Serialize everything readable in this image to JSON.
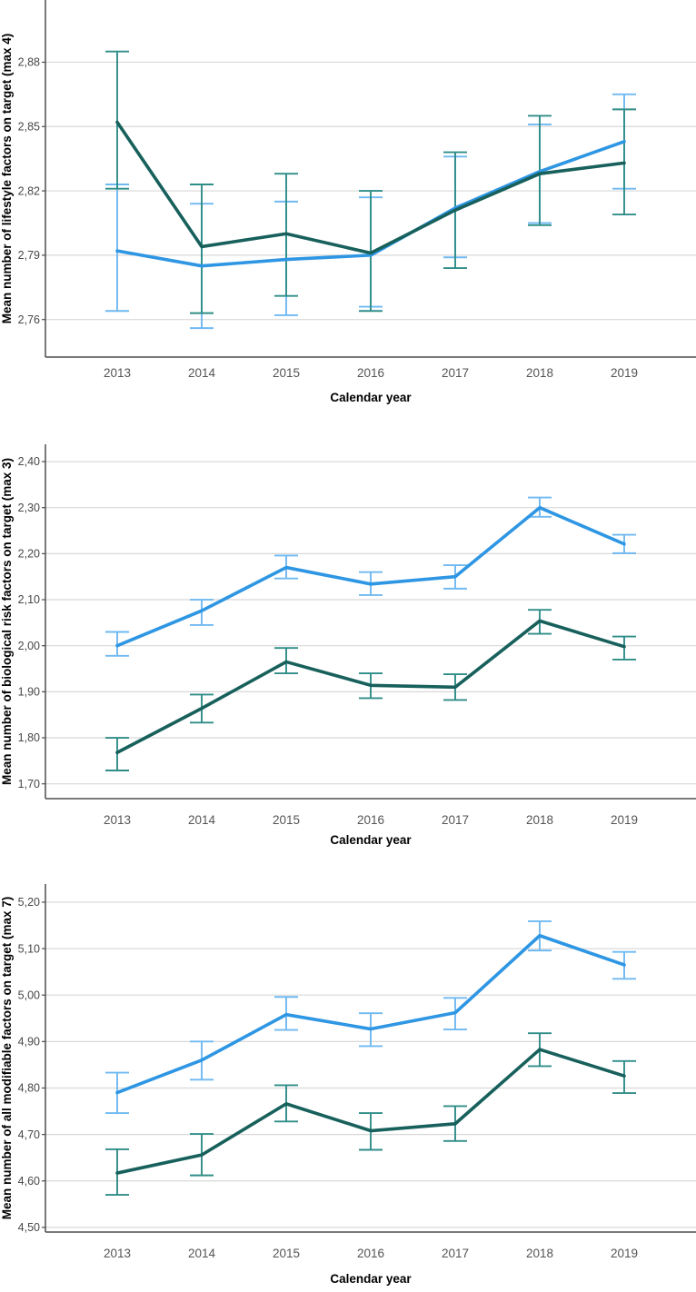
{
  "page": {
    "background": "#ffffff",
    "xlabel": "Calendar year"
  },
  "colors": {
    "series_light_blue": "#2E96E3",
    "series_light_blue_error": "#6FB9F1",
    "series_dark_teal": "#17605B",
    "series_dark_teal_error": "#2F8D88",
    "gridline": "#D8D8D8",
    "axis": "#4D4D4D",
    "tick_text": "#474747",
    "xtick_text": "#545454",
    "axis_title_text": "#000000"
  },
  "chart_data": [
    {
      "type": "line",
      "title": "",
      "xlabel": "Calendar year",
      "ylabel": "Mean number of lifestyle factors on target (max 4)",
      "categories": [
        "2013",
        "2014",
        "2015",
        "2016",
        "2017",
        "2018",
        "2019"
      ],
      "yticks": [
        2.76,
        2.79,
        2.82,
        2.85,
        2.88
      ],
      "ytick_labels": [
        "2,76",
        "2,79",
        "2,82",
        "2,85",
        "2,88"
      ],
      "ylim": [
        2.7425,
        2.909
      ],
      "grid": true,
      "legend_position": "none",
      "error_bars": true,
      "series": [
        {
          "name": "light-blue",
          "color": "#2E96E3",
          "error_color": "#6FB9F1",
          "values": [
            2.792,
            2.785,
            2.788,
            2.79,
            2.812,
            2.829,
            2.843
          ],
          "error_low": [
            2.764,
            2.756,
            2.762,
            2.766,
            2.789,
            2.805,
            2.821
          ],
          "error_high": [
            2.823,
            2.814,
            2.815,
            2.817,
            2.836,
            2.851,
            2.865
          ]
        },
        {
          "name": "dark-teal",
          "color": "#17605B",
          "error_color": "#2F8D88",
          "values": [
            2.852,
            2.794,
            2.8,
            2.791,
            2.811,
            2.828,
            2.833
          ],
          "error_low": [
            2.821,
            2.763,
            2.771,
            2.764,
            2.784,
            2.804,
            2.809
          ],
          "error_high": [
            2.885,
            2.823,
            2.828,
            2.82,
            2.838,
            2.855,
            2.858
          ]
        }
      ]
    },
    {
      "type": "line",
      "title": "",
      "xlabel": "Calendar year",
      "ylabel": "Mean number of biological risk factors on target (max 3)",
      "categories": [
        "2013",
        "2014",
        "2015",
        "2016",
        "2017",
        "2018",
        "2019"
      ],
      "yticks": [
        1.7,
        1.8,
        1.9,
        2.0,
        2.1,
        2.2,
        2.3,
        2.4
      ],
      "ytick_labels": [
        "1,70",
        "1,80",
        "1,90",
        "2,00",
        "2,10",
        "2,20",
        "2,30",
        "2,40"
      ],
      "ylim": [
        1.6678,
        2.4376
      ],
      "grid": true,
      "legend_position": "none",
      "error_bars": true,
      "series": [
        {
          "name": "light-blue",
          "color": "#2E96E3",
          "error_color": "#6FB9F1",
          "values": [
            2.0,
            2.076,
            2.17,
            2.134,
            2.15,
            2.3,
            2.221
          ],
          "error_low": [
            1.978,
            2.045,
            2.146,
            2.11,
            2.124,
            2.28,
            2.201
          ],
          "error_high": [
            2.03,
            2.1,
            2.196,
            2.16,
            2.175,
            2.322,
            2.241
          ]
        },
        {
          "name": "dark-teal",
          "color": "#17605B",
          "error_color": "#2F8D88",
          "values": [
            1.768,
            1.864,
            1.965,
            1.914,
            1.91,
            2.054,
            1.998
          ],
          "error_low": [
            1.729,
            1.833,
            1.94,
            1.886,
            1.882,
            2.026,
            1.97
          ],
          "error_high": [
            1.8,
            1.894,
            1.995,
            1.94,
            1.938,
            2.078,
            2.02
          ]
        }
      ]
    },
    {
      "type": "line",
      "title": "",
      "xlabel": "Calendar year",
      "ylabel": "Mean number of all modifiable factors on target (max 7)",
      "categories": [
        "2013",
        "2014",
        "2015",
        "2016",
        "2017",
        "2018",
        "2019"
      ],
      "yticks": [
        4.5,
        4.6,
        4.7,
        4.8,
        4.9,
        5.0,
        5.1,
        5.2
      ],
      "ytick_labels": [
        "4,50",
        "4,60",
        "4,70",
        "4,80",
        "4,90",
        "5,00",
        "5,10",
        "5,20"
      ],
      "ylim": [
        4.49,
        5.239
      ],
      "grid": true,
      "legend_position": "none",
      "error_bars": true,
      "series": [
        {
          "name": "light-blue",
          "color": "#2E96E3",
          "error_color": "#6FB9F1",
          "values": [
            4.79,
            4.86,
            4.958,
            4.927,
            4.962,
            5.128,
            5.065
          ],
          "error_low": [
            4.746,
            4.818,
            4.925,
            4.89,
            4.926,
            5.096,
            5.035
          ],
          "error_high": [
            4.833,
            4.9,
            4.996,
            4.961,
            4.994,
            5.159,
            5.093
          ]
        },
        {
          "name": "dark-teal",
          "color": "#17605B",
          "error_color": "#2F8D88",
          "values": [
            4.617,
            4.656,
            4.766,
            4.708,
            4.723,
            4.883,
            4.826
          ],
          "error_low": [
            4.57,
            4.612,
            4.728,
            4.667,
            4.686,
            4.847,
            4.789
          ],
          "error_high": [
            4.668,
            4.701,
            4.806,
            4.746,
            4.761,
            4.918,
            4.858
          ]
        }
      ]
    }
  ]
}
